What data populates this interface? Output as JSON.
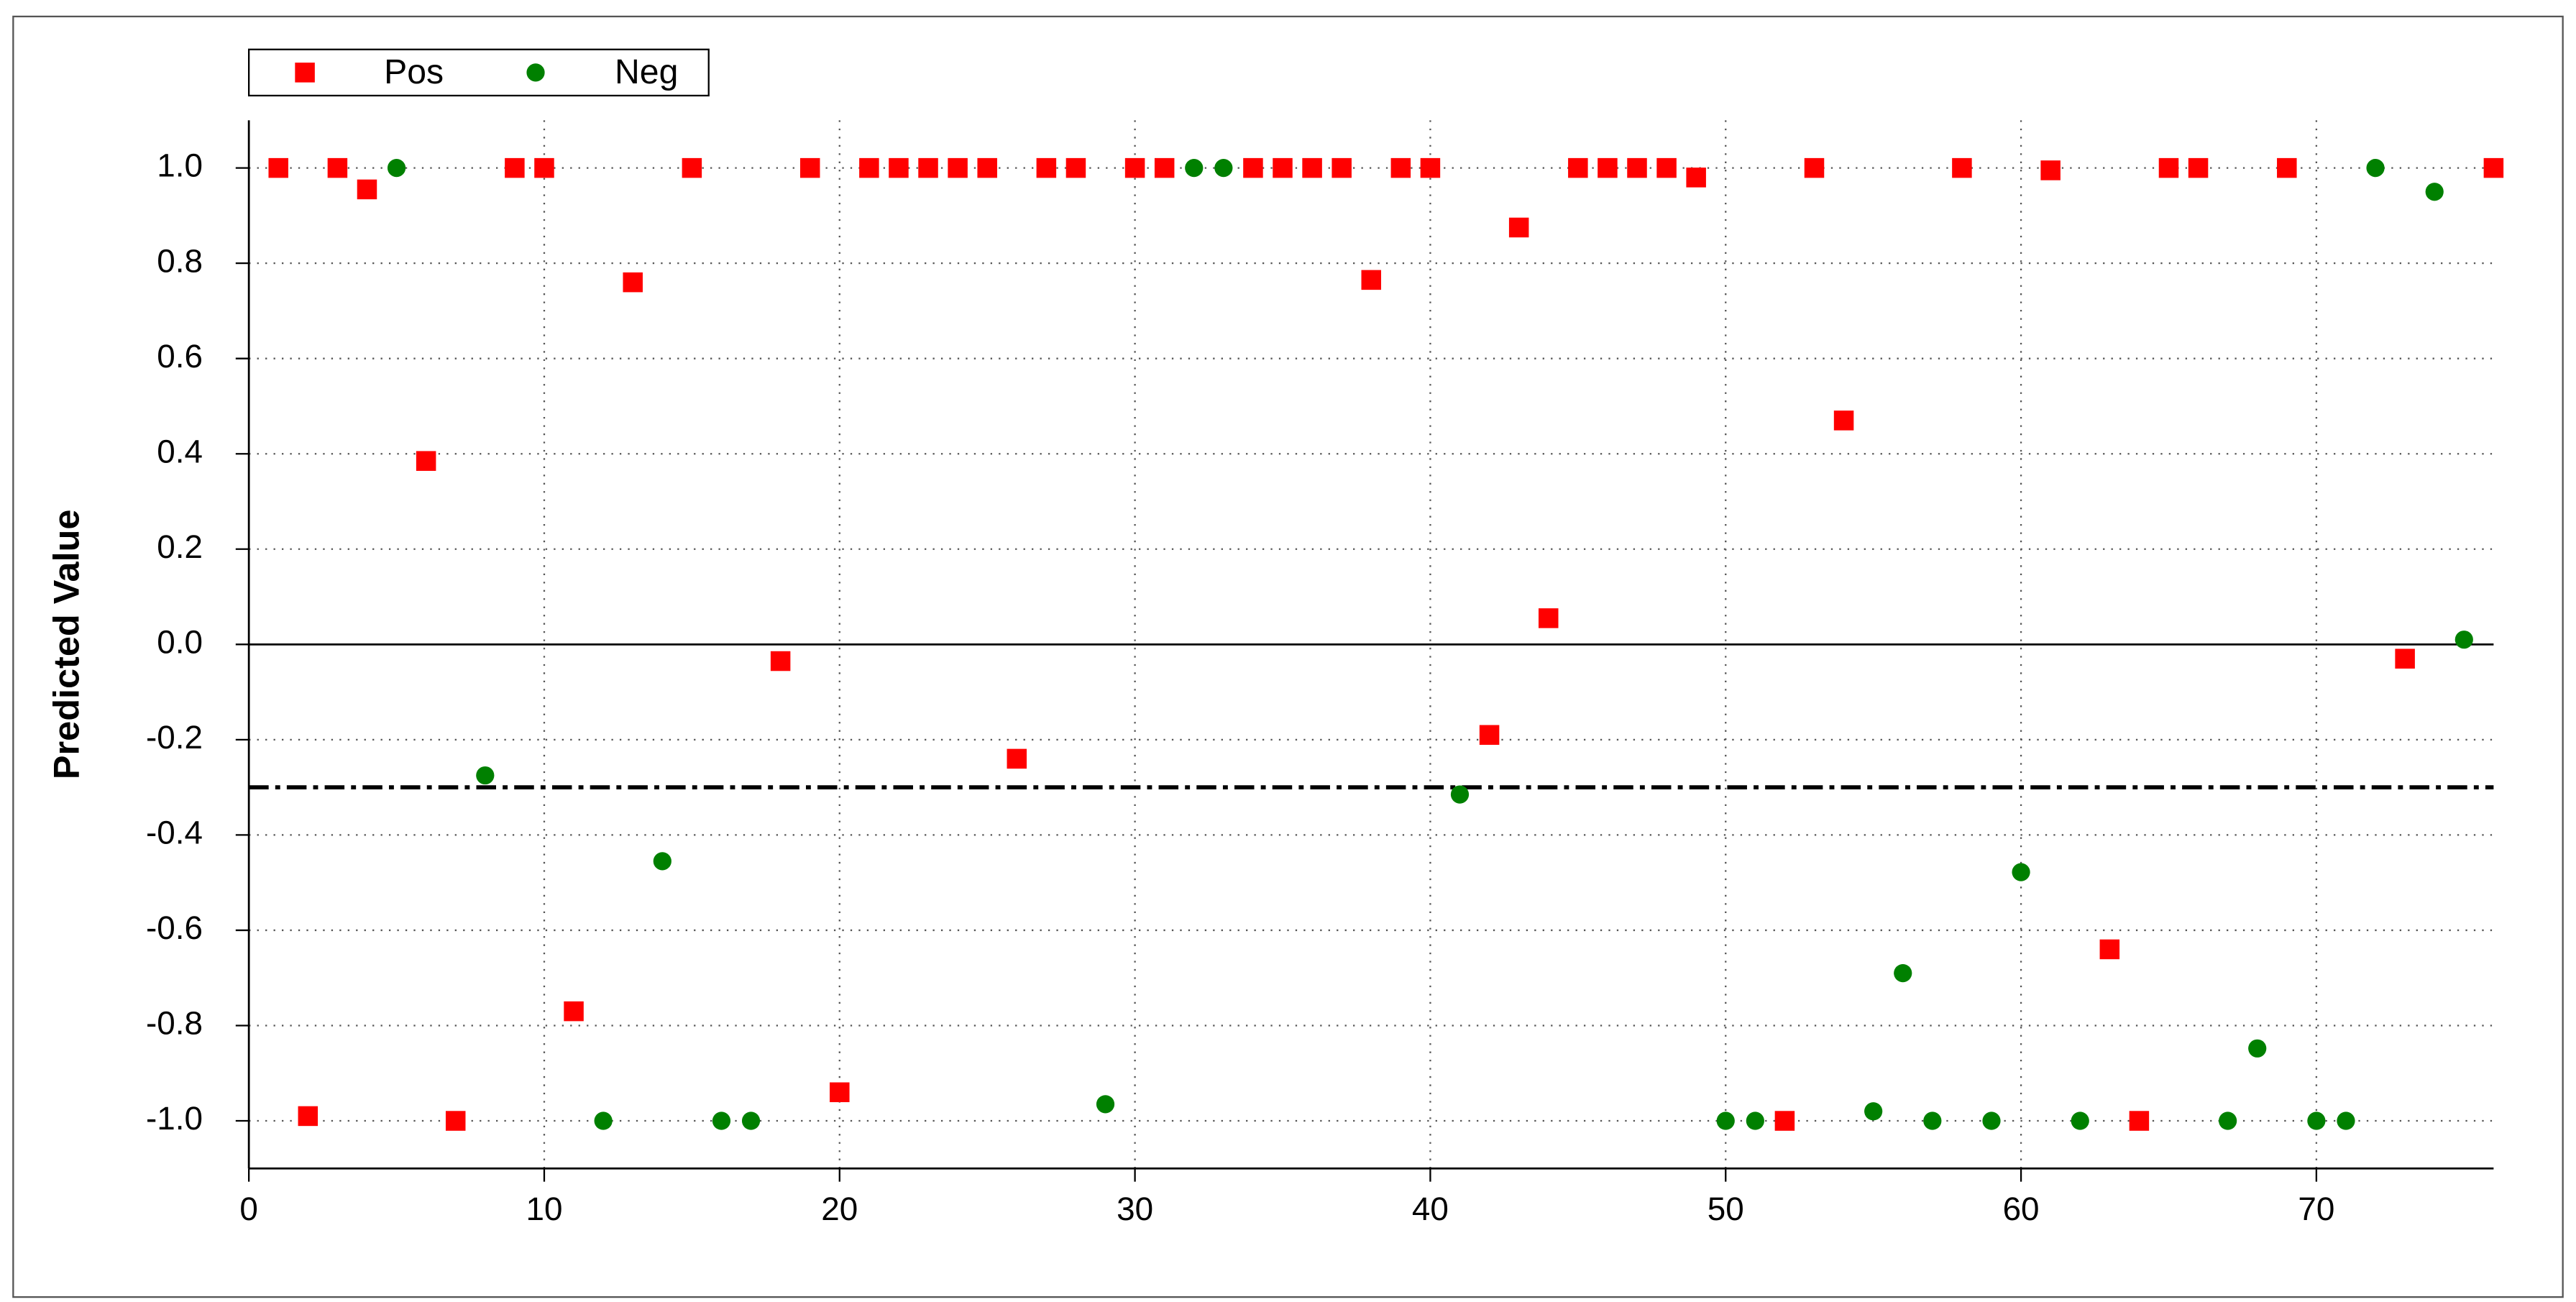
{
  "chart_data": {
    "type": "scatter",
    "y_label": "Predicted Value",
    "xlim": [
      0,
      76
    ],
    "ylim": [
      -1.1,
      1.1
    ],
    "xticks": [
      0,
      10,
      20,
      30,
      40,
      50,
      60,
      70
    ],
    "yticks": [
      {
        "value": -1,
        "label": "-1.0"
      },
      -0.8,
      -0.6,
      -0.4,
      -0.2,
      {
        "value": 0,
        "label": "0.0"
      },
      0.2,
      0.4,
      0.6,
      0.8,
      {
        "value": 1,
        "label": "1.0"
      }
    ],
    "grid": true,
    "zero_line": true,
    "threshold": -0.3,
    "legend": "top-left",
    "series": [
      {
        "name": "Pos",
        "color": "#ff0000",
        "marker": "square",
        "x": [
          1,
          2,
          3,
          4,
          6,
          7,
          9,
          10,
          11,
          13,
          15,
          18,
          19,
          20,
          21,
          22,
          23,
          24,
          25,
          26,
          27,
          28,
          30,
          31,
          34,
          35,
          36,
          37,
          38,
          39,
          40,
          42,
          43,
          44,
          45,
          46,
          47,
          48,
          49,
          52,
          53,
          54,
          58,
          61,
          63,
          64,
          65,
          66,
          69,
          73,
          76
        ],
        "values": [
          1.0,
          -0.99,
          1.0,
          0.955,
          0.385,
          -1.0,
          1.0,
          1.0,
          -0.77,
          0.76,
          1.0,
          -0.035,
          1.0,
          -0.94,
          1.0,
          1.0,
          1.0,
          1.0,
          1.0,
          -0.24,
          1.0,
          1.0,
          1.0,
          1.0,
          1.0,
          1.0,
          1.0,
          1.0,
          0.765,
          1.0,
          1.0,
          -0.19,
          0.875,
          0.055,
          1.0,
          1.0,
          1.0,
          1.0,
          0.98,
          -1.0,
          1.0,
          0.47,
          1.0,
          0.995,
          -0.64,
          -1.0,
          1.0,
          1.0,
          1.0,
          -0.03,
          1.0
        ]
      },
      {
        "name": "Neg",
        "color": "#008000",
        "marker": "circle",
        "x": [
          5,
          8,
          12,
          14,
          16,
          17,
          29,
          32,
          33,
          41,
          50,
          51,
          55,
          56,
          57,
          59,
          60,
          62,
          67,
          68,
          70,
          71,
          72,
          74,
          75
        ],
        "values": [
          1.0,
          -0.275,
          -1.0,
          -0.455,
          -1.0,
          -1.0,
          -0.965,
          1.0,
          1.0,
          -0.315,
          -1.0,
          -1.0,
          -0.98,
          -0.69,
          -1.0,
          -1.0,
          -0.478,
          -1.0,
          -1.0,
          -0.848,
          -1.0,
          -1.0,
          1.0,
          0.95,
          0.01
        ]
      }
    ]
  }
}
